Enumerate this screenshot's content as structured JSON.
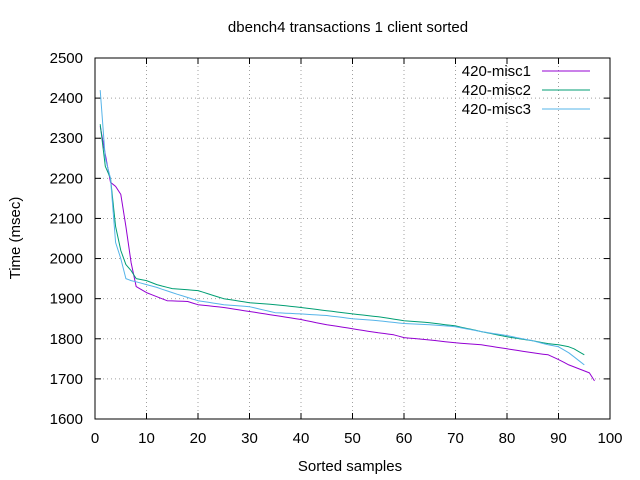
{
  "chart_data": {
    "type": "line",
    "title": "dbench4 transactions 1 client sorted",
    "xlabel": "Sorted samples",
    "ylabel": "Time (msec)",
    "xlim": [
      0,
      100
    ],
    "ylim": [
      1600,
      2500
    ],
    "x_ticks": [
      "0",
      "10",
      "20",
      "30",
      "40",
      "50",
      "60",
      "70",
      "80",
      "90",
      "100"
    ],
    "y_ticks": [
      "1600",
      "1700",
      "1800",
      "1900",
      "2000",
      "2100",
      "2200",
      "2300",
      "2400",
      "2500"
    ],
    "grid": true,
    "legend_position": "top-right",
    "series": [
      {
        "name": "420-misc1",
        "color": "#9400d3",
        "points": [
          [
            1,
            2330
          ],
          [
            2,
            2260
          ],
          [
            3,
            2190
          ],
          [
            4,
            2180
          ],
          [
            5,
            2160
          ],
          [
            6,
            2080
          ],
          [
            7,
            1990
          ],
          [
            8,
            1930
          ],
          [
            10,
            1915
          ],
          [
            12,
            1905
          ],
          [
            14,
            1895
          ],
          [
            18,
            1893
          ],
          [
            20,
            1885
          ],
          [
            25,
            1878
          ],
          [
            30,
            1868
          ],
          [
            35,
            1858
          ],
          [
            40,
            1848
          ],
          [
            45,
            1835
          ],
          [
            50,
            1825
          ],
          [
            55,
            1815
          ],
          [
            58,
            1810
          ],
          [
            60,
            1803
          ],
          [
            65,
            1797
          ],
          [
            70,
            1790
          ],
          [
            75,
            1785
          ],
          [
            80,
            1775
          ],
          [
            85,
            1765
          ],
          [
            88,
            1760
          ],
          [
            90,
            1748
          ],
          [
            92,
            1735
          ],
          [
            94,
            1725
          ],
          [
            96,
            1715
          ],
          [
            97,
            1695
          ]
        ]
      },
      {
        "name": "420-misc2",
        "color": "#009e73",
        "points": [
          [
            1,
            2335
          ],
          [
            2,
            2230
          ],
          [
            3,
            2200
          ],
          [
            4,
            2080
          ],
          [
            5,
            2020
          ],
          [
            6,
            1985
          ],
          [
            7,
            1970
          ],
          [
            8,
            1950
          ],
          [
            10,
            1945
          ],
          [
            12,
            1935
          ],
          [
            15,
            1925
          ],
          [
            20,
            1920
          ],
          [
            25,
            1900
          ],
          [
            30,
            1890
          ],
          [
            35,
            1885
          ],
          [
            40,
            1878
          ],
          [
            45,
            1870
          ],
          [
            50,
            1862
          ],
          [
            55,
            1855
          ],
          [
            60,
            1845
          ],
          [
            65,
            1840
          ],
          [
            70,
            1832
          ],
          [
            75,
            1818
          ],
          [
            80,
            1805
          ],
          [
            85,
            1795
          ],
          [
            88,
            1788
          ],
          [
            90,
            1785
          ],
          [
            92,
            1780
          ],
          [
            93,
            1775
          ],
          [
            95,
            1760
          ]
        ]
      },
      {
        "name": "420-misc3",
        "color": "#56b4e9",
        "points": [
          [
            1,
            2420
          ],
          [
            2,
            2250
          ],
          [
            3,
            2200
          ],
          [
            4,
            2040
          ],
          [
            5,
            2000
          ],
          [
            6,
            1950
          ],
          [
            7,
            1945
          ],
          [
            8,
            1942
          ],
          [
            10,
            1935
          ],
          [
            12,
            1928
          ],
          [
            15,
            1915
          ],
          [
            20,
            1895
          ],
          [
            25,
            1885
          ],
          [
            30,
            1880
          ],
          [
            35,
            1865
          ],
          [
            40,
            1862
          ],
          [
            45,
            1858
          ],
          [
            50,
            1850
          ],
          [
            55,
            1845
          ],
          [
            60,
            1838
          ],
          [
            65,
            1835
          ],
          [
            70,
            1830
          ],
          [
            75,
            1818
          ],
          [
            80,
            1808
          ],
          [
            85,
            1795
          ],
          [
            88,
            1785
          ],
          [
            90,
            1780
          ],
          [
            92,
            1765
          ],
          [
            94,
            1745
          ],
          [
            95,
            1735
          ]
        ]
      }
    ]
  }
}
